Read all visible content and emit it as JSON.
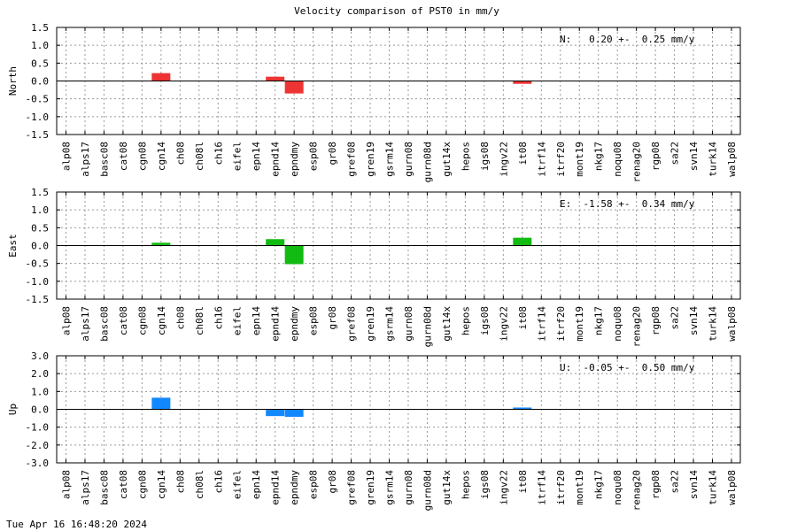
{
  "chart_data": {
    "type": "bar",
    "title": "Velocity comparison of PST0 in mm/y",
    "categories": [
      "alp08",
      "alps17",
      "basc08",
      "cat08",
      "cgn08",
      "cgn14",
      "ch08",
      "ch08l",
      "ch16",
      "eifel",
      "epn14",
      "epnd14",
      "epndmy",
      "esp08",
      "gr08",
      "gref08",
      "gren19",
      "gsrm14",
      "gurn08",
      "gurn08d",
      "gut14x",
      "hepos",
      "igs08",
      "ingv22",
      "it08",
      "itrf14",
      "itrf20",
      "mont19",
      "nkg17",
      "noqu08",
      "renag20",
      "rgp08",
      "sa22",
      "svn14",
      "turk14",
      "walp08"
    ],
    "panels": [
      {
        "ylabel": "North",
        "ylim": [
          -1.5,
          1.5
        ],
        "yticks": [
          "1.5",
          "1.0",
          "0.5",
          "0.0",
          "-0.5",
          "-1.0",
          "-1.5"
        ],
        "ytick_values": [
          1.5,
          1.0,
          0.5,
          0.0,
          -0.5,
          -1.0,
          -1.5
        ],
        "color": "#ee3333",
        "annotation": "N:   0.20 +-  0.25 mm/y",
        "values": [
          0,
          0,
          0,
          0,
          0,
          0.22,
          0,
          0,
          0,
          0,
          0,
          0.12,
          -0.35,
          0,
          0,
          0,
          0,
          0,
          0,
          0,
          0,
          0,
          0,
          0,
          -0.08,
          0,
          0,
          0,
          0,
          0,
          0,
          0,
          0,
          0,
          0,
          0
        ]
      },
      {
        "ylabel": "East",
        "ylim": [
          -1.5,
          1.5
        ],
        "yticks": [
          "1.5",
          "1.0",
          "0.5",
          "0.0",
          "-0.5",
          "-1.0",
          "-1.5"
        ],
        "ytick_values": [
          1.5,
          1.0,
          0.5,
          0.0,
          -0.5,
          -1.0,
          -1.5
        ],
        "color": "#11bb11",
        "annotation": "E:  -1.58 +-  0.34 mm/y",
        "values": [
          0,
          0,
          0,
          0,
          0,
          0.08,
          0,
          0,
          0,
          0,
          0,
          0.18,
          -0.52,
          0,
          0,
          0,
          0,
          0,
          0,
          0,
          0,
          0,
          0,
          0,
          0.22,
          0,
          0,
          0,
          0,
          0,
          0,
          0,
          0,
          0,
          0,
          0
        ]
      },
      {
        "ylabel": "Up",
        "ylim": [
          -3.0,
          3.0
        ],
        "yticks": [
          "3.0",
          "2.0",
          "1.0",
          "0.0",
          "-1.0",
          "-2.0",
          "-3.0"
        ],
        "ytick_values": [
          3.0,
          2.0,
          1.0,
          0.0,
          -1.0,
          -2.0,
          -3.0
        ],
        "color": "#1188ff",
        "annotation": "U:  -0.05 +-  0.50 mm/y",
        "values": [
          0,
          0,
          0,
          0,
          0,
          0.65,
          0,
          0,
          0,
          0,
          0,
          -0.38,
          -0.42,
          0,
          0,
          0,
          0,
          0,
          0,
          0,
          0,
          0,
          0,
          0,
          0.1,
          0,
          0,
          0,
          0,
          0,
          0,
          0,
          0,
          0,
          0,
          0
        ]
      }
    ],
    "grid": true
  },
  "footer": {
    "timestamp": "Tue Apr 16 16:48:20 2024"
  }
}
